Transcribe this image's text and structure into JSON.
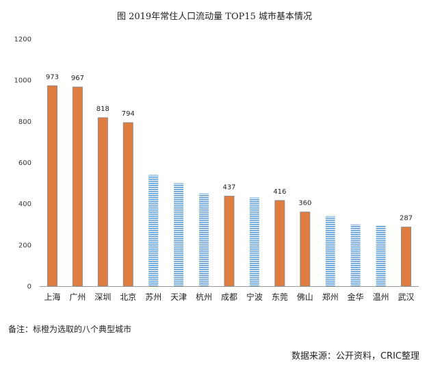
{
  "chart_data": {
    "type": "bar",
    "title": "图  2019年常住人口流动量 TOP15 城市基本情况",
    "categories": [
      "上海",
      "广州",
      "深圳",
      "北京",
      "苏州",
      "天津",
      "杭州",
      "成都",
      "宁波",
      "东莞",
      "佛山",
      "郑州",
      "金华",
      "温州",
      "武汉"
    ],
    "values": [
      973,
      967,
      818,
      794,
      540,
      500,
      450,
      437,
      430,
      416,
      360,
      340,
      300,
      297,
      287
    ],
    "highlighted": [
      true,
      true,
      true,
      true,
      false,
      false,
      false,
      true,
      false,
      true,
      true,
      false,
      false,
      false,
      true
    ],
    "data_labels": [
      "973",
      "967",
      "818",
      "794",
      "",
      "",
      "",
      "437",
      "",
      "416",
      "360",
      "",
      "",
      "",
      "287"
    ],
    "yticks": [
      0,
      200,
      400,
      600,
      800,
      1000,
      1200
    ],
    "ylim": [
      0,
      1200
    ],
    "xlabel": "",
    "ylabel": "",
    "grid": false,
    "colors": {
      "highlight": "#E07C3F",
      "normal": "#5B9BD5",
      "axis": "#999999"
    }
  },
  "note": "备注：标橙为选取的八个典型城市",
  "source": "数据来源：公开资料，CRIC整理"
}
